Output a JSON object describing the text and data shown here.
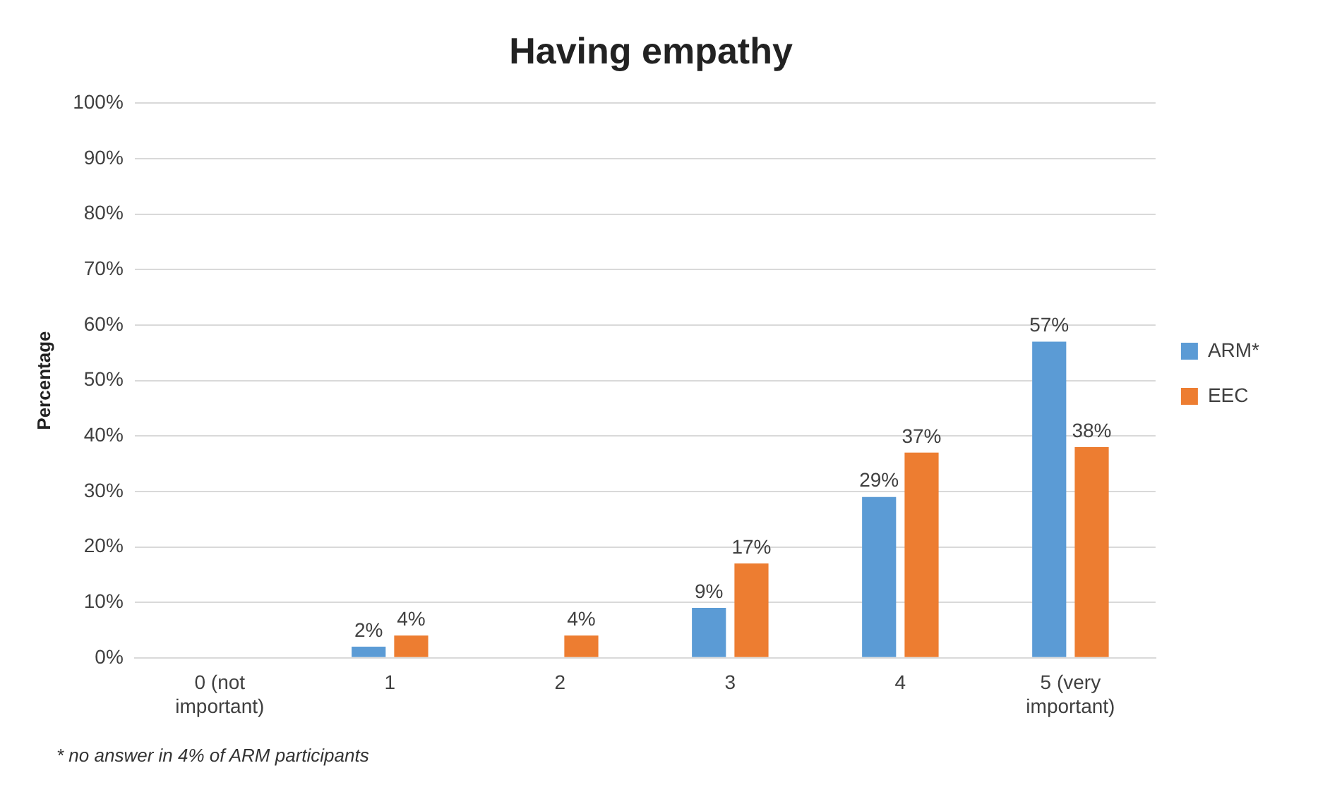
{
  "chart_data": {
    "type": "bar",
    "title": "Having empathy",
    "ylabel": "Percentage",
    "categories": [
      "0 (not important)",
      "1",
      "2",
      "3",
      "4",
      "5 (very important)"
    ],
    "series": [
      {
        "name": "ARM*",
        "color": "#5b9bd5",
        "values": [
          0,
          2,
          0,
          9,
          29,
          57
        ],
        "value_labels": [
          null,
          "2%",
          null,
          "9%",
          "29%",
          "57%"
        ]
      },
      {
        "name": "EEC",
        "color": "#ed7d31",
        "values": [
          0,
          4,
          4,
          17,
          37,
          38
        ],
        "value_labels": [
          null,
          "4%",
          "4%",
          "17%",
          "37%",
          "38%"
        ]
      }
    ],
    "ylim": [
      0,
      100
    ],
    "yticks": [
      {
        "value": 0,
        "label": "0%"
      },
      {
        "value": 10,
        "label": "10%"
      },
      {
        "value": 20,
        "label": "20%"
      },
      {
        "value": 30,
        "label": "30%"
      },
      {
        "value": 40,
        "label": "40%"
      },
      {
        "value": 50,
        "label": "50%"
      },
      {
        "value": 60,
        "label": "60%"
      },
      {
        "value": 70,
        "label": "70%"
      },
      {
        "value": 80,
        "label": "80%"
      },
      {
        "value": 90,
        "label": "90%"
      },
      {
        "value": 100,
        "label": "100%"
      }
    ],
    "grid": "y",
    "legend": "right",
    "annotations": [
      "* no answer in 4% of ARM participants"
    ]
  }
}
